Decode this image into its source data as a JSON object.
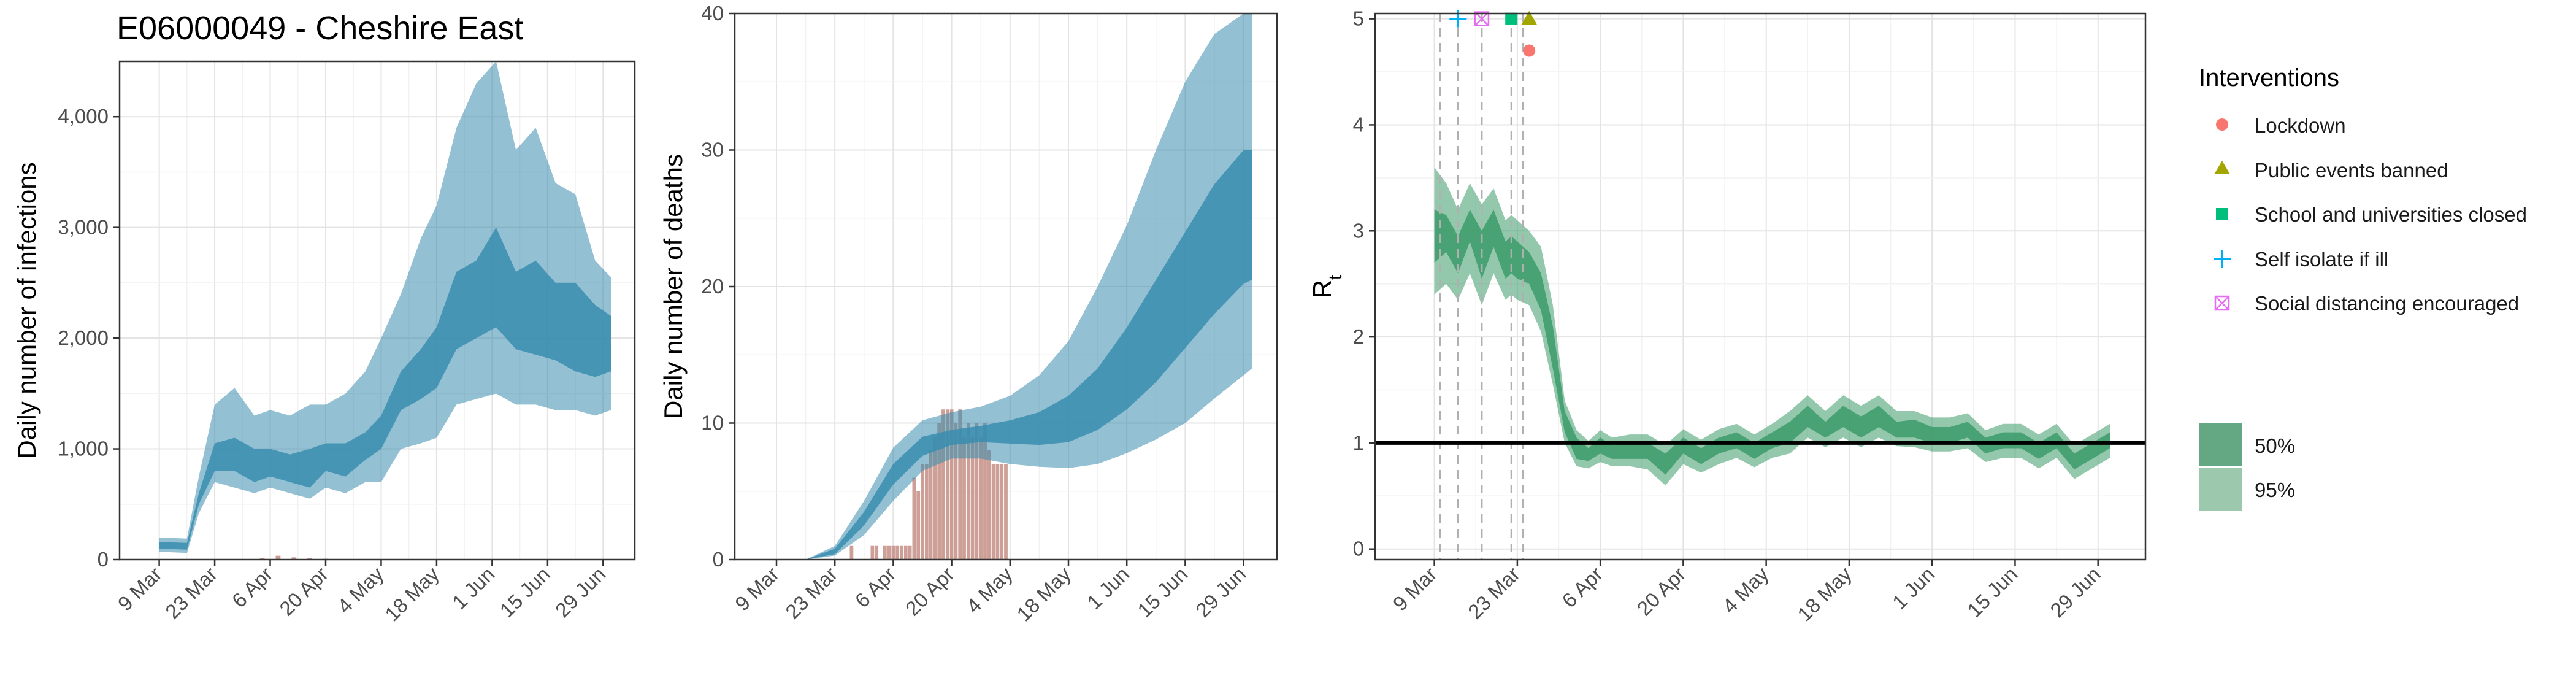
{
  "figure_title": "E06000049 - Cheshire East",
  "colors": {
    "infections_band": "#3a8daf",
    "deaths_band": "#3a8daf",
    "deaths_bars": "#c48e84",
    "rt_band": "#3c9b68",
    "lockdown": "#f8766d",
    "public_events_banned": "#a3a500",
    "schools_closed": "#00bf7d",
    "self_isolate": "#00b0f6",
    "social_distancing": "#e76bf3"
  },
  "legend": {
    "interventions_title": "Interventions",
    "interventions": [
      {
        "label": "Lockdown",
        "icon": "circle-icon"
      },
      {
        "label": "Public events banned",
        "icon": "triangle-icon"
      },
      {
        "label": "School and universities closed",
        "icon": "square-icon"
      },
      {
        "label": "Self isolate if ill",
        "icon": "plus-icon"
      },
      {
        "label": "Social distancing encouraged",
        "icon": "boxed-x-icon"
      }
    ],
    "bands": [
      {
        "label": "50%"
      },
      {
        "label": "95%"
      }
    ]
  },
  "chart_data": [
    {
      "type": "area",
      "id": "infections",
      "title": "E06000049 - Cheshire East",
      "xlabel": "",
      "ylabel": "Daily number of infections",
      "x_ticks": [
        "9 Mar",
        "23 Mar",
        "6 Apr",
        "20 Apr",
        "4 May",
        "18 May",
        "1 Jun",
        "15 Jun",
        "29 Jun"
      ],
      "y_ticks": [
        "0",
        "1,000",
        "2,000",
        "3,000",
        "4,000"
      ],
      "x_range": [
        -10,
        120
      ],
      "ylim": [
        0,
        4500
      ],
      "grid": true,
      "series": [
        {
          "name": "50%",
          "x": [
            0,
            7,
            10,
            14,
            19,
            24,
            28,
            33,
            38,
            42,
            47,
            52,
            56,
            61,
            66,
            70,
            75,
            80,
            85,
            90,
            95,
            100,
            105,
            110,
            114
          ],
          "lower": [
            100,
            90,
            500,
            800,
            800,
            700,
            750,
            700,
            650,
            800,
            750,
            900,
            1000,
            1350,
            1450,
            1550,
            1900,
            2000,
            2100,
            1900,
            1850,
            1800,
            1700,
            1650,
            1700
          ],
          "upper": [
            160,
            150,
            600,
            1050,
            1100,
            1000,
            1000,
            950,
            1000,
            1050,
            1050,
            1150,
            1300,
            1700,
            1900,
            2100,
            2600,
            2700,
            3000,
            2600,
            2700,
            2500,
            2500,
            2300,
            2200
          ]
        },
        {
          "name": "95%",
          "x": [
            0,
            7,
            10,
            14,
            19,
            24,
            28,
            33,
            38,
            42,
            47,
            52,
            56,
            61,
            66,
            70,
            75,
            80,
            85,
            90,
            95,
            100,
            105,
            110,
            114
          ],
          "lower": [
            70,
            60,
            420,
            700,
            650,
            600,
            650,
            600,
            550,
            650,
            600,
            700,
            700,
            1000,
            1050,
            1100,
            1400,
            1450,
            1500,
            1400,
            1400,
            1350,
            1350,
            1300,
            1350
          ],
          "upper": [
            200,
            190,
            750,
            1400,
            1550,
            1300,
            1350,
            1300,
            1400,
            1400,
            1500,
            1700,
            2000,
            2400,
            2900,
            3200,
            3900,
            4300,
            4500,
            3700,
            3900,
            3400,
            3300,
            2700,
            2550
          ]
        }
      ],
      "bars": {
        "x": [
          22,
          26,
          30,
          34,
          38,
          42
        ],
        "values": [
          5,
          15,
          35,
          20,
          12,
          8
        ]
      }
    },
    {
      "type": "area",
      "id": "deaths",
      "title": "",
      "xlabel": "",
      "ylabel": "Daily number of deaths",
      "x_ticks": [
        "9 Mar",
        "23 Mar",
        "6 Apr",
        "20 Apr",
        "4 May",
        "18 May",
        "1 Jun",
        "15 Jun",
        "29 Jun"
      ],
      "y_ticks": [
        "0",
        "10",
        "20",
        "30",
        "40"
      ],
      "x_range": [
        -10,
        120
      ],
      "ylim": [
        0,
        40
      ],
      "grid": true,
      "series": [
        {
          "name": "50%",
          "x": [
            0,
            7,
            14,
            21,
            28,
            35,
            42,
            49,
            56,
            63,
            70,
            77,
            84,
            91,
            98,
            105,
            112,
            114
          ],
          "lower": [
            0,
            0,
            0.4,
            2.5,
            5.5,
            7.6,
            8.4,
            8.6,
            8.5,
            8.4,
            8.6,
            9.5,
            11,
            13,
            15.5,
            18,
            20.2,
            20.5
          ],
          "upper": [
            0,
            0,
            0.8,
            3.5,
            7,
            9,
            9.5,
            9.8,
            10.2,
            10.8,
            12,
            14,
            17,
            20.5,
            24,
            27.5,
            30,
            30
          ]
        },
        {
          "name": "95%",
          "x": [
            0,
            7,
            14,
            21,
            28,
            35,
            42,
            49,
            56,
            63,
            70,
            77,
            84,
            91,
            98,
            105,
            112,
            114
          ],
          "lower": [
            0,
            0,
            0.3,
            1.8,
            4.3,
            6.5,
            7.4,
            7.4,
            7,
            6.8,
            6.7,
            7,
            7.8,
            8.8,
            10,
            11.8,
            13.5,
            14
          ],
          "upper": [
            0,
            0,
            1,
            4.3,
            8.2,
            10.2,
            10.8,
            11.2,
            12,
            13.5,
            16,
            20,
            24.5,
            30,
            35,
            38.5,
            40.2,
            40
          ]
        }
      ],
      "bars": {
        "x": [
          18,
          19,
          20,
          21,
          22,
          23,
          24,
          25,
          26,
          27,
          28,
          29,
          30,
          31,
          32,
          33,
          34,
          35,
          36,
          37,
          38,
          39,
          40,
          41,
          42,
          43,
          44,
          45,
          46,
          47,
          48,
          49,
          50,
          51,
          52,
          53,
          54,
          55
        ],
        "values": [
          1,
          0,
          0,
          0,
          0,
          1,
          1,
          0,
          1,
          1,
          1,
          1,
          1,
          1,
          1,
          6,
          5,
          7,
          7,
          8,
          9,
          10,
          11,
          11,
          11,
          10,
          11,
          9,
          10,
          9,
          10,
          9,
          10,
          8,
          7,
          7,
          7,
          7
        ]
      }
    },
    {
      "type": "area",
      "id": "rt",
      "title": "",
      "xlabel": "",
      "ylabel": "R",
      "ylabel_subscript": "t",
      "x_ticks": [
        "9 Mar",
        "23 Mar",
        "6 Apr",
        "20 Apr",
        "4 May",
        "18 May",
        "1 Jun",
        "15 Jun",
        "29 Jun"
      ],
      "y_ticks": [
        "0",
        "1",
        "2",
        "3",
        "4",
        "5"
      ],
      "x_range": [
        -10,
        120
      ],
      "ylim": [
        -0.1,
        5.05
      ],
      "grid": true,
      "reference_line": 1,
      "series": [
        {
          "name": "50%",
          "x": [
            0,
            2,
            4,
            6,
            8,
            10,
            12,
            13,
            14,
            16,
            18,
            20,
            22,
            24,
            26,
            28,
            30,
            33,
            36,
            39,
            42,
            45,
            48,
            51,
            54,
            57,
            60,
            63,
            66,
            69,
            72,
            75,
            78,
            81,
            84,
            87,
            90,
            93,
            96,
            99,
            102,
            105,
            108,
            111,
            114
          ],
          "lower": [
            2.7,
            2.8,
            2.6,
            2.9,
            2.55,
            2.85,
            2.55,
            2.6,
            2.55,
            2.5,
            2.25,
            1.7,
            1.1,
            0.85,
            0.83,
            0.9,
            0.85,
            0.85,
            0.85,
            0.7,
            0.9,
            0.8,
            0.9,
            0.95,
            0.85,
            0.95,
            1,
            1.15,
            1.05,
            1.15,
            1.05,
            1.15,
            1.05,
            1.05,
            1,
            1,
            1.05,
            0.9,
            0.95,
            0.95,
            0.85,
            0.95,
            0.75,
            0.85,
            0.95
          ],
          "upper": [
            3.2,
            3.15,
            2.95,
            3.2,
            3,
            3.2,
            2.9,
            2.95,
            2.9,
            2.8,
            2.6,
            2.1,
            1.3,
            1.05,
            0.95,
            1.05,
            0.98,
            1,
            1,
            0.9,
            1.05,
            0.95,
            1.05,
            1.1,
            1,
            1.1,
            1.2,
            1.35,
            1.2,
            1.35,
            1.25,
            1.35,
            1.2,
            1.22,
            1.15,
            1.15,
            1.2,
            1.05,
            1.1,
            1.1,
            1,
            1.1,
            0.9,
            1,
            1.1
          ]
        },
        {
          "name": "95%",
          "x": [
            0,
            2,
            4,
            6,
            8,
            10,
            12,
            13,
            14,
            16,
            18,
            20,
            22,
            24,
            26,
            28,
            30,
            33,
            36,
            39,
            42,
            45,
            48,
            51,
            54,
            57,
            60,
            63,
            66,
            69,
            72,
            75,
            78,
            81,
            84,
            87,
            90,
            93,
            96,
            99,
            102,
            105,
            108,
            111,
            114
          ],
          "lower": [
            2.4,
            2.5,
            2.35,
            2.6,
            2.3,
            2.6,
            2.35,
            2.4,
            2.35,
            2.3,
            2.05,
            1.55,
            1.0,
            0.78,
            0.76,
            0.82,
            0.78,
            0.78,
            0.75,
            0.6,
            0.8,
            0.72,
            0.8,
            0.86,
            0.77,
            0.86,
            0.9,
            1.05,
            0.96,
            1.05,
            0.96,
            1.05,
            0.97,
            0.96,
            0.92,
            0.92,
            0.95,
            0.82,
            0.86,
            0.86,
            0.76,
            0.86,
            0.66,
            0.76,
            0.86
          ],
          "upper": [
            3.6,
            3.45,
            3.2,
            3.45,
            3.25,
            3.4,
            3.1,
            3.15,
            3.1,
            3,
            2.85,
            2.3,
            1.4,
            1.12,
            1.02,
            1.12,
            1.05,
            1.08,
            1.08,
            0.98,
            1.13,
            1.03,
            1.13,
            1.18,
            1.08,
            1.18,
            1.3,
            1.45,
            1.3,
            1.45,
            1.35,
            1.45,
            1.3,
            1.3,
            1.24,
            1.24,
            1.28,
            1.12,
            1.18,
            1.18,
            1.08,
            1.18,
            0.98,
            1.08,
            1.18
          ]
        }
      ],
      "interventions": [
        {
          "label": "Self isolate if ill",
          "x": 4,
          "y": 5,
          "icon": "plus-icon"
        },
        {
          "label": "Social distancing encouraged",
          "x": 8,
          "y": 5,
          "icon": "boxed-x-icon"
        },
        {
          "label": "School and universities closed",
          "x": 13,
          "y": 5,
          "icon": "square-icon"
        },
        {
          "label": "Public events banned",
          "x": 16,
          "y": 5,
          "icon": "triangle-icon"
        },
        {
          "label": "Lockdown",
          "x": 16,
          "y": 4.7,
          "icon": "circle-icon"
        }
      ],
      "intervention_lines_x": [
        1,
        4,
        8,
        13,
        15
      ]
    }
  ]
}
